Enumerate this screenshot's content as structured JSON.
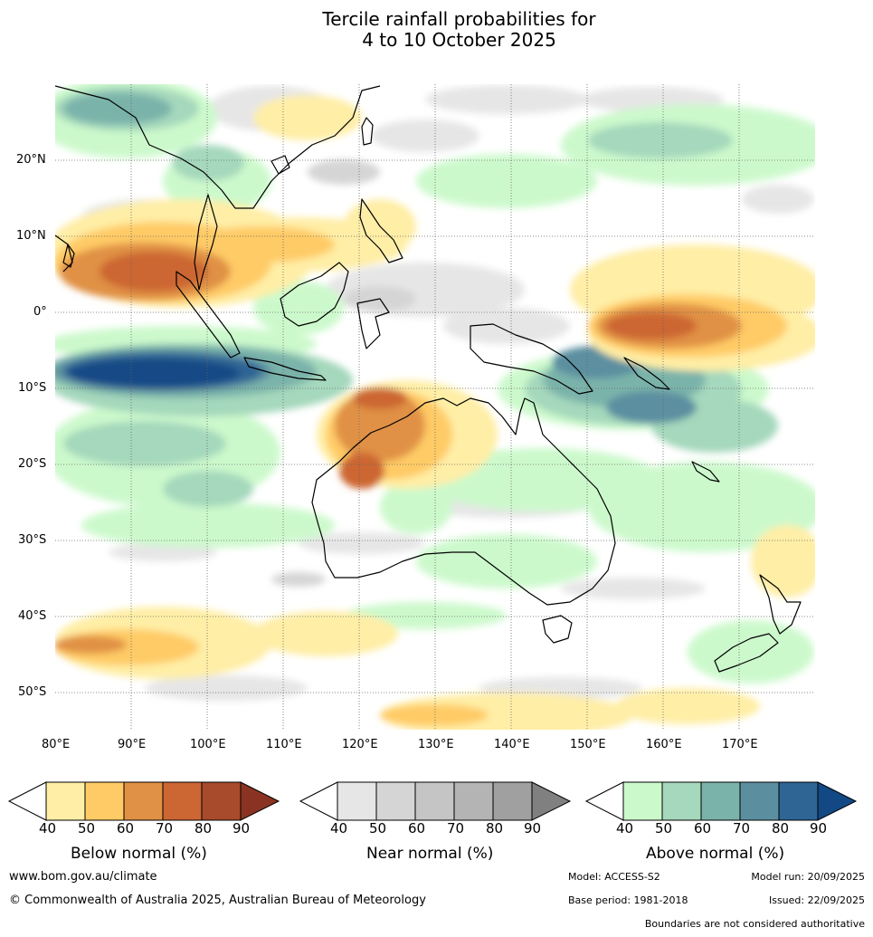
{
  "title": {
    "line1": "Tercile rainfall probabilities for",
    "line2": "4 to 10 October 2025"
  },
  "map": {
    "lat_labels": [
      "20°N",
      "10°N",
      "0°",
      "10°S",
      "20°S",
      "30°S",
      "40°S",
      "50°S"
    ],
    "lon_labels": [
      "80°E",
      "90°E",
      "100°E",
      "110°E",
      "120°E",
      "130°E",
      "140°E",
      "150°E",
      "160°E",
      "170°E"
    ],
    "lon_range": [
      80,
      180
    ],
    "lat_range": [
      -55,
      30
    ]
  },
  "legends": [
    {
      "label": "Below normal (%)",
      "ticks": [
        "40",
        "50",
        "60",
        "70",
        "80",
        "90"
      ],
      "colors": [
        "#ffffff",
        "#ffeea6",
        "#ffcb66",
        "#e09145",
        "#cc6633",
        "#a84b2c",
        "#8b3322"
      ]
    },
    {
      "label": "Near normal (%)",
      "ticks": [
        "40",
        "50",
        "60",
        "70",
        "80",
        "90"
      ],
      "colors": [
        "#ffffff",
        "#e6e6e6",
        "#d5d5d5",
        "#c5c5c5",
        "#b4b4b4",
        "#a0a0a0",
        "#808080"
      ]
    },
    {
      "label": "Above normal (%)",
      "ticks": [
        "40",
        "50",
        "60",
        "70",
        "80",
        "90"
      ],
      "colors": [
        "#ffffff",
        "#ccf9cc",
        "#a5d8bc",
        "#7ab3aa",
        "#5b8fa0",
        "#2e6594",
        "#124985"
      ]
    }
  ],
  "footer": {
    "website": "www.bom.gov.au/climate",
    "copyright": "© Commonwealth of Australia 2025, Australian Bureau of Meteorology",
    "model": "Model: ACCESS-S2",
    "model_run": "Model run: 20/09/2025",
    "base_period": "Base period: 1981-2018",
    "issued": "Issued: 22/09/2025",
    "disclaimer": "Boundaries are not considered authoritative"
  }
}
